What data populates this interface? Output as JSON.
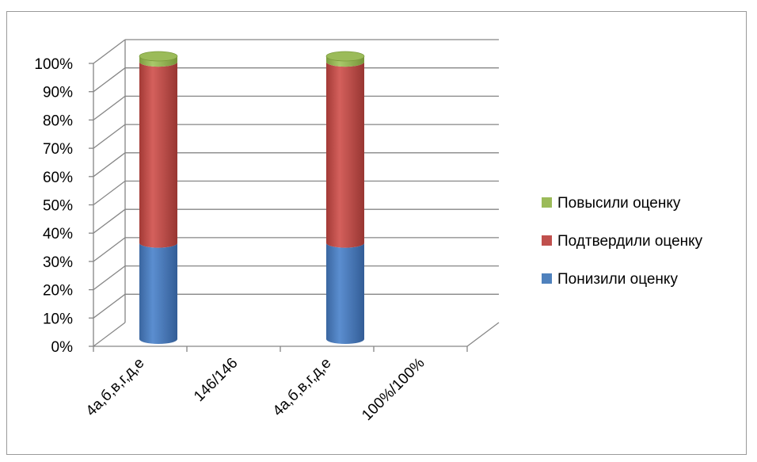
{
  "chart_data": {
    "type": "bar",
    "stacked": true,
    "percent_stacked": true,
    "three_d": true,
    "categories": [
      "4а,б,в,г,д,е",
      "146/146",
      "4а,б,в,г,д,е",
      "100%/100%"
    ],
    "series": [
      {
        "name": "Понизили оценку",
        "color": "#4F81BD",
        "values": [
          34,
          0,
          34,
          0
        ]
      },
      {
        "name": "Подтвердили оценку",
        "color": "#C0504D",
        "values": [
          64,
          0,
          64,
          0
        ]
      },
      {
        "name": "Повысили оценку",
        "color": "#9BBB59",
        "values": [
          2,
          0,
          2,
          0
        ]
      }
    ],
    "y_ticks": [
      "0%",
      "10%",
      "20%",
      "30%",
      "40%",
      "50%",
      "60%",
      "70%",
      "80%",
      "90%",
      "100%"
    ],
    "ylim": [
      0,
      100
    ],
    "grid": true,
    "legend_position": "right",
    "title": "",
    "xlabel": "",
    "ylabel": ""
  }
}
